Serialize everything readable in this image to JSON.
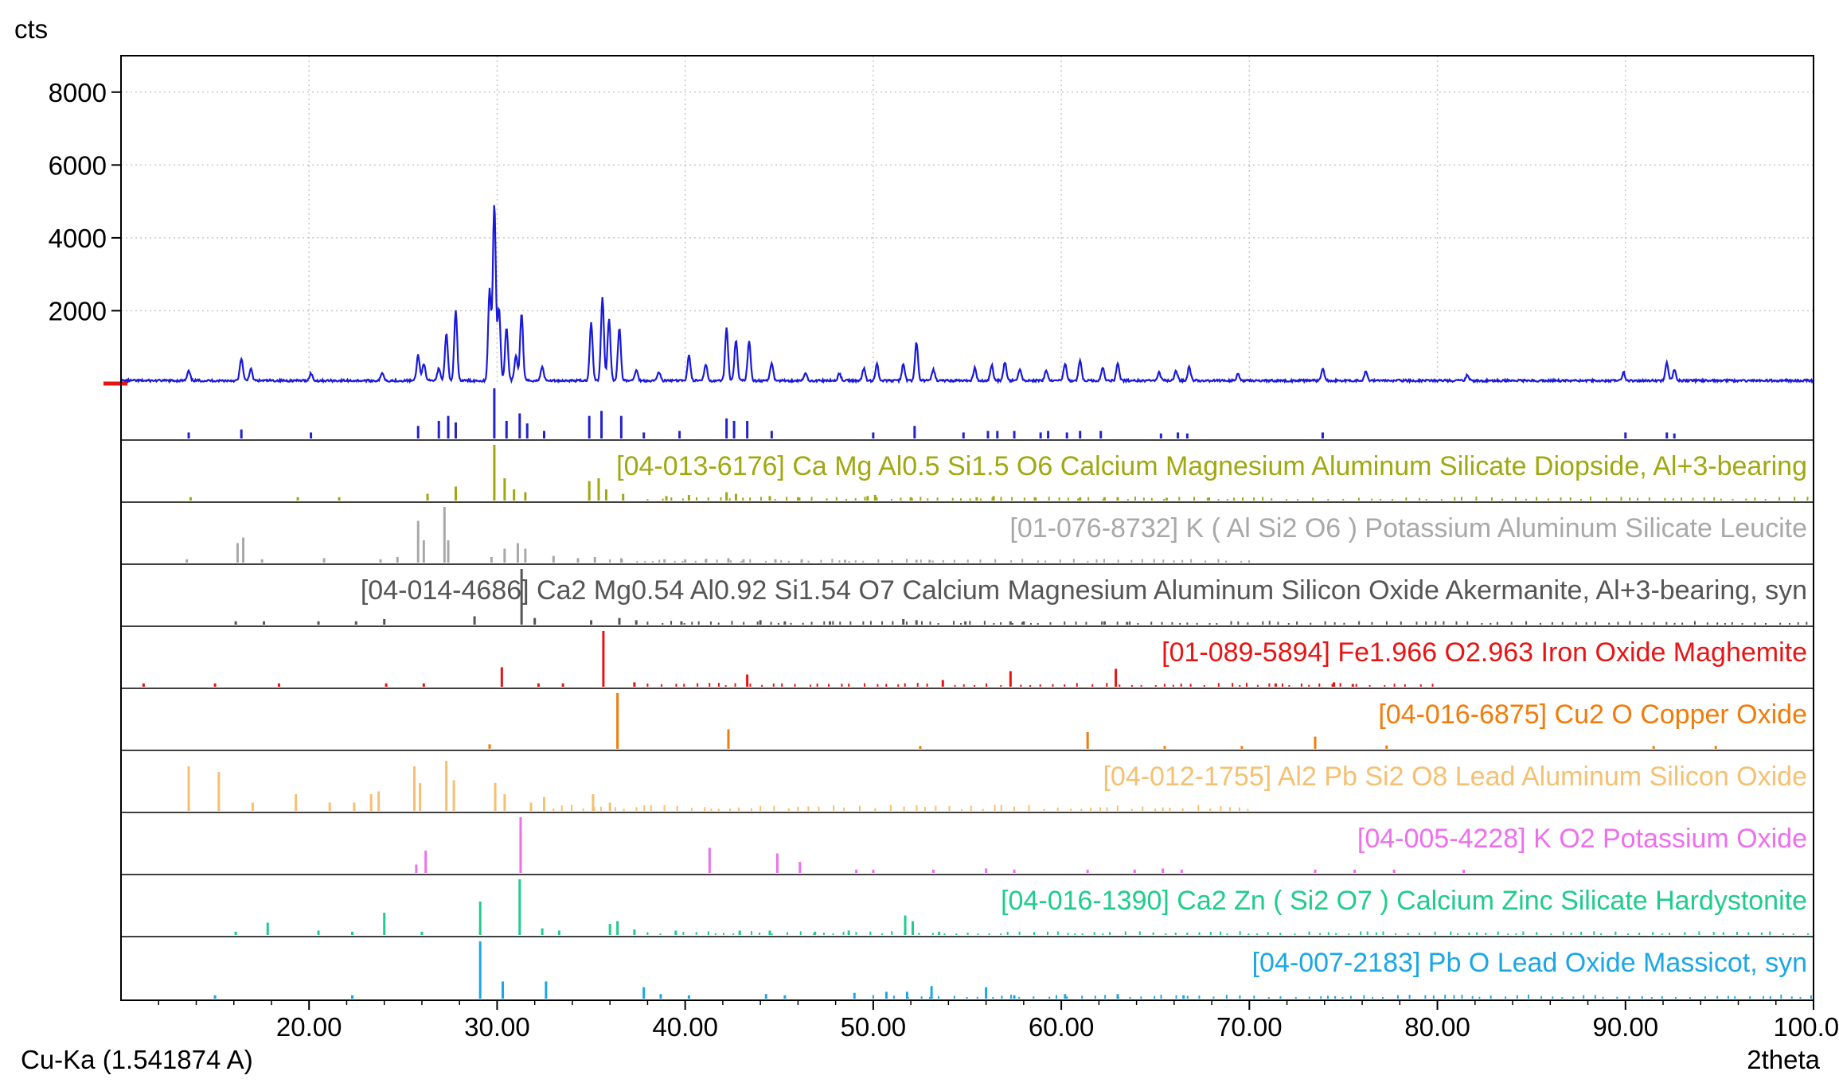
{
  "chart_data": {
    "type": "line",
    "title": "",
    "xlabel": "2theta",
    "ylabel": "cts",
    "radiation_label": "Cu-Ka (1.541874 A)",
    "xlim": [
      10.0,
      100.0
    ],
    "ylim": [
      0,
      9000
    ],
    "x_ticks": [
      "20.00",
      "30.00",
      "40.00",
      "50.00",
      "60.00",
      "70.00",
      "80.00",
      "90.00",
      "100.00"
    ],
    "y_ticks": [
      "2000",
      "4000",
      "6000",
      "8000"
    ],
    "x_tick_values": [
      20,
      30,
      40,
      50,
      60,
      70,
      80,
      90,
      100
    ],
    "y_tick_values": [
      2000,
      4000,
      6000,
      8000
    ],
    "grid": true,
    "series": [
      {
        "color": "#1a1adb",
        "background": 80,
        "peaks": [
          [
            13.6,
            260
          ],
          [
            16.4,
            620
          ],
          [
            16.9,
            320
          ],
          [
            20.1,
            200
          ],
          [
            23.9,
            220
          ],
          [
            25.8,
            700
          ],
          [
            26.1,
            480
          ],
          [
            26.9,
            350
          ],
          [
            27.3,
            1300
          ],
          [
            27.8,
            1900
          ],
          [
            29.6,
            2500
          ],
          [
            29.85,
            4850
          ],
          [
            30.1,
            2000
          ],
          [
            30.5,
            1450
          ],
          [
            31.0,
            700
          ],
          [
            31.3,
            1850
          ],
          [
            32.4,
            400
          ],
          [
            35.0,
            1600
          ],
          [
            35.6,
            2300
          ],
          [
            35.95,
            1700
          ],
          [
            36.5,
            1450
          ],
          [
            37.4,
            300
          ],
          [
            38.6,
            250
          ],
          [
            40.2,
            700
          ],
          [
            41.1,
            450
          ],
          [
            42.2,
            1450
          ],
          [
            42.7,
            1100
          ],
          [
            43.4,
            1100
          ],
          [
            44.6,
            500
          ],
          [
            46.4,
            200
          ],
          [
            48.2,
            200
          ],
          [
            49.5,
            330
          ],
          [
            50.2,
            450
          ],
          [
            51.6,
            450
          ],
          [
            52.3,
            1050
          ],
          [
            53.2,
            300
          ],
          [
            55.4,
            340
          ],
          [
            56.3,
            420
          ],
          [
            57.0,
            500
          ],
          [
            57.8,
            330
          ],
          [
            59.2,
            280
          ],
          [
            60.2,
            480
          ],
          [
            61.0,
            560
          ],
          [
            62.2,
            360
          ],
          [
            63.0,
            480
          ],
          [
            65.2,
            220
          ],
          [
            66.1,
            260
          ],
          [
            66.8,
            380
          ],
          [
            69.4,
            180
          ],
          [
            73.9,
            330
          ],
          [
            76.2,
            250
          ],
          [
            81.6,
            160
          ],
          [
            89.9,
            220
          ],
          [
            92.2,
            500
          ],
          [
            92.6,
            300
          ]
        ]
      }
    ],
    "reference_patterns": [
      {
        "label": "",
        "color": "#2222cc",
        "sticks": [
          [
            13.6,
            0.12
          ],
          [
            16.4,
            0.18
          ],
          [
            20.1,
            0.12
          ],
          [
            25.8,
            0.25
          ],
          [
            26.9,
            0.35
          ],
          [
            27.4,
            0.45
          ],
          [
            27.8,
            0.32
          ],
          [
            29.85,
            1.0
          ],
          [
            30.5,
            0.35
          ],
          [
            31.2,
            0.5
          ],
          [
            31.6,
            0.3
          ],
          [
            32.5,
            0.15
          ],
          [
            34.9,
            0.45
          ],
          [
            35.55,
            0.55
          ],
          [
            36.6,
            0.45
          ],
          [
            37.8,
            0.12
          ],
          [
            39.7,
            0.15
          ],
          [
            42.2,
            0.4
          ],
          [
            42.6,
            0.35
          ],
          [
            43.3,
            0.35
          ],
          [
            44.6,
            0.15
          ],
          [
            50.0,
            0.12
          ],
          [
            52.2,
            0.25
          ],
          [
            54.8,
            0.12
          ],
          [
            56.1,
            0.15
          ],
          [
            56.6,
            0.15
          ],
          [
            57.5,
            0.15
          ],
          [
            58.9,
            0.12
          ],
          [
            59.3,
            0.15
          ],
          [
            60.3,
            0.12
          ],
          [
            61.0,
            0.15
          ],
          [
            62.1,
            0.15
          ],
          [
            65.3,
            0.1
          ],
          [
            66.2,
            0.12
          ],
          [
            66.7,
            0.1
          ],
          [
            73.9,
            0.12
          ],
          [
            90.0,
            0.12
          ],
          [
            92.2,
            0.12
          ],
          [
            92.6,
            0.1
          ]
        ]
      },
      {
        "label": "[04-013-6176] Ca Mg Al0.5 Si1.5 O6 Calcium Magnesium Aluminum Silicate Diopside, Al+3-bearing",
        "color": "#9fa80f",
        "sticks": [
          [
            13.7,
            0.06
          ],
          [
            19.4,
            0.06
          ],
          [
            21.6,
            0.06
          ],
          [
            26.3,
            0.12
          ],
          [
            27.8,
            0.25
          ],
          [
            29.85,
            1.0
          ],
          [
            30.4,
            0.4
          ],
          [
            30.9,
            0.2
          ],
          [
            31.5,
            0.15
          ],
          [
            34.9,
            0.35
          ],
          [
            35.4,
            0.4
          ],
          [
            35.8,
            0.2
          ],
          [
            36.7,
            0.12
          ],
          [
            39.0,
            0.08
          ],
          [
            40.2,
            0.1
          ],
          [
            42.2,
            0.15
          ],
          [
            42.7,
            0.12
          ],
          [
            44.5,
            0.08
          ],
          [
            46.0,
            0.06
          ],
          [
            49.7,
            0.08
          ],
          [
            50.1,
            0.1
          ],
          [
            52.0,
            0.06
          ],
          [
            55.5,
            0.06
          ],
          [
            56.4,
            0.08
          ],
          [
            58.6,
            0.06
          ],
          [
            61.0,
            0.06
          ],
          [
            62.3,
            0.06
          ],
          [
            63.0,
            0.06
          ],
          [
            65.6,
            0.05
          ],
          [
            67.8,
            0.05
          ]
        ],
        "dense": [
          38,
          100,
          0.05
        ]
      },
      {
        "label": "[01-076-8732] K ( Al Si2 O6 ) Potassium Aluminum Silicate Leucite",
        "color": "#a8a8a8",
        "sticks": [
          [
            13.5,
            0.06
          ],
          [
            16.2,
            0.35
          ],
          [
            16.5,
            0.45
          ],
          [
            17.5,
            0.06
          ],
          [
            20.8,
            0.08
          ],
          [
            23.8,
            0.06
          ],
          [
            24.7,
            0.1
          ],
          [
            25.8,
            0.75
          ],
          [
            26.1,
            0.4
          ],
          [
            27.2,
            1.0
          ],
          [
            27.4,
            0.4
          ],
          [
            29.7,
            0.1
          ],
          [
            30.4,
            0.25
          ],
          [
            31.1,
            0.35
          ],
          [
            31.5,
            0.25
          ],
          [
            33.0,
            0.12
          ],
          [
            34.3,
            0.08
          ],
          [
            35.2,
            0.1
          ],
          [
            36.6,
            0.08
          ],
          [
            38.9,
            0.06
          ],
          [
            40.0,
            0.06
          ],
          [
            41.1,
            0.06
          ],
          [
            42.3,
            0.08
          ],
          [
            43.1,
            0.06
          ],
          [
            44.8,
            0.06
          ],
          [
            46.2,
            0.06
          ],
          [
            48.5,
            0.05
          ],
          [
            52.3,
            0.05
          ],
          [
            53.0,
            0.05
          ]
        ],
        "dense": [
          36,
          70,
          0.05
        ]
      },
      {
        "label": "[04-014-4686] Ca2 Mg0.54 Al0.92 Si1.54 O7 Calcium Magnesium Aluminum Silicon Oxide Akermanite, Al+3-bearing, syn",
        "color": "#555555",
        "sticks": [
          [
            16.1,
            0.06
          ],
          [
            17.6,
            0.06
          ],
          [
            20.5,
            0.06
          ],
          [
            22.5,
            0.06
          ],
          [
            24.0,
            0.1
          ],
          [
            28.8,
            0.15
          ],
          [
            31.3,
            1.0
          ],
          [
            32.0,
            0.12
          ],
          [
            35.0,
            0.08
          ],
          [
            36.5,
            0.12
          ],
          [
            37.4,
            0.08
          ],
          [
            39.8,
            0.06
          ],
          [
            44.0,
            0.08
          ],
          [
            45.3,
            0.06
          ],
          [
            47.7,
            0.06
          ],
          [
            51.6,
            0.1
          ],
          [
            52.3,
            0.08
          ],
          [
            54.9,
            0.06
          ],
          [
            57.3,
            0.06
          ],
          [
            58.0,
            0.06
          ],
          [
            62.3,
            0.06
          ],
          [
            63.5,
            0.05
          ]
        ],
        "dense": [
          38,
          100,
          0.05
        ]
      },
      {
        "label": "[01-089-5894] Fe1.966 O2.963 Iron Oxide Maghemite",
        "color": "#e81414",
        "sticks": [
          [
            11.2,
            0.06
          ],
          [
            15.0,
            0.06
          ],
          [
            18.4,
            0.06
          ],
          [
            24.1,
            0.06
          ],
          [
            26.1,
            0.06
          ],
          [
            30.25,
            0.35
          ],
          [
            32.2,
            0.06
          ],
          [
            33.5,
            0.06
          ],
          [
            35.65,
            1.0
          ],
          [
            37.3,
            0.08
          ],
          [
            43.3,
            0.22
          ],
          [
            53.7,
            0.12
          ],
          [
            57.3,
            0.28
          ],
          [
            62.9,
            0.32
          ],
          [
            71.4,
            0.06
          ],
          [
            74.5,
            0.08
          ],
          [
            75.5,
            0.05
          ]
        ],
        "dense": [
          38,
          80,
          0.05
        ]
      },
      {
        "label": "[04-016-6875] Cu2 O Copper Oxide",
        "color": "#f07c0a",
        "sticks": [
          [
            29.6,
            0.08
          ],
          [
            36.4,
            1.0
          ],
          [
            42.3,
            0.35
          ],
          [
            52.5,
            0.05
          ],
          [
            61.4,
            0.3
          ],
          [
            65.5,
            0.05
          ],
          [
            69.6,
            0.05
          ],
          [
            73.5,
            0.22
          ],
          [
            77.3,
            0.06
          ],
          [
            91.5,
            0.05
          ],
          [
            94.8,
            0.05
          ]
        ]
      },
      {
        "label": "[04-012-1755] Al2 Pb Si2 O8 Lead Aluminum Silicon Oxide",
        "color": "#f5c070",
        "sticks": [
          [
            13.6,
            0.8
          ],
          [
            15.2,
            0.7
          ],
          [
            17.0,
            0.15
          ],
          [
            19.3,
            0.3
          ],
          [
            21.1,
            0.15
          ],
          [
            22.4,
            0.15
          ],
          [
            23.3,
            0.3
          ],
          [
            23.7,
            0.35
          ],
          [
            25.6,
            0.8
          ],
          [
            25.9,
            0.5
          ],
          [
            27.3,
            0.9
          ],
          [
            27.7,
            0.55
          ],
          [
            29.9,
            0.5
          ],
          [
            30.4,
            0.3
          ],
          [
            31.8,
            0.15
          ],
          [
            32.5,
            0.25
          ],
          [
            35.1,
            0.3
          ],
          [
            36.0,
            0.15
          ]
        ],
        "dense": [
          33,
          70,
          0.08
        ]
      },
      {
        "label": "[04-005-4228] K O2 Potassium Oxide",
        "color": "#ee6fee",
        "sticks": [
          [
            25.7,
            0.15
          ],
          [
            26.2,
            0.4
          ],
          [
            31.25,
            1.0
          ],
          [
            41.3,
            0.45
          ],
          [
            44.9,
            0.35
          ],
          [
            46.1,
            0.2
          ],
          [
            49.1,
            0.06
          ],
          [
            50.0,
            0.06
          ],
          [
            53.2,
            0.06
          ],
          [
            56.0,
            0.08
          ],
          [
            57.5,
            0.06
          ],
          [
            61.4,
            0.06
          ],
          [
            63.9,
            0.06
          ],
          [
            65.4,
            0.08
          ],
          [
            66.4,
            0.06
          ],
          [
            73.5,
            0.06
          ],
          [
            75.6,
            0.06
          ],
          [
            77.7,
            0.06
          ],
          [
            81.4,
            0.06
          ]
        ]
      },
      {
        "label": "[04-016-1390] Ca2 Zn ( Si2 O7 ) Calcium Zinc Silicate Hardystonite",
        "color": "#1fcc8c",
        "sticks": [
          [
            16.1,
            0.06
          ],
          [
            17.8,
            0.22
          ],
          [
            20.5,
            0.08
          ],
          [
            22.3,
            0.06
          ],
          [
            24.0,
            0.4
          ],
          [
            26.0,
            0.06
          ],
          [
            29.1,
            0.6
          ],
          [
            31.2,
            1.0
          ],
          [
            32.4,
            0.12
          ],
          [
            33.3,
            0.08
          ],
          [
            36.0,
            0.2
          ],
          [
            36.4,
            0.25
          ],
          [
            37.3,
            0.1
          ],
          [
            39.5,
            0.08
          ],
          [
            42.9,
            0.08
          ],
          [
            44.5,
            0.08
          ],
          [
            46.9,
            0.06
          ],
          [
            48.7,
            0.08
          ],
          [
            51.7,
            0.35
          ],
          [
            52.1,
            0.25
          ],
          [
            53.5,
            0.06
          ]
        ],
        "dense": [
          38,
          100,
          0.05
        ]
      },
      {
        "label": "[04-007-2183] Pb O Lead Oxide Massicot, syn",
        "color": "#1ba6e6",
        "sticks": [
          [
            15.0,
            0.06
          ],
          [
            22.3,
            0.06
          ],
          [
            29.1,
            1.0
          ],
          [
            30.3,
            0.3
          ],
          [
            32.6,
            0.3
          ],
          [
            37.8,
            0.2
          ],
          [
            38.7,
            0.08
          ],
          [
            40.2,
            0.06
          ],
          [
            44.3,
            0.08
          ],
          [
            45.3,
            0.06
          ],
          [
            49.0,
            0.1
          ],
          [
            50.7,
            0.12
          ],
          [
            51.8,
            0.12
          ],
          [
            53.1,
            0.22
          ],
          [
            56.0,
            0.2
          ],
          [
            57.5,
            0.06
          ],
          [
            60.2,
            0.08
          ],
          [
            63.0,
            0.08
          ],
          [
            66.5,
            0.06
          ]
        ],
        "dense": [
          50,
          100,
          0.05
        ]
      }
    ]
  }
}
